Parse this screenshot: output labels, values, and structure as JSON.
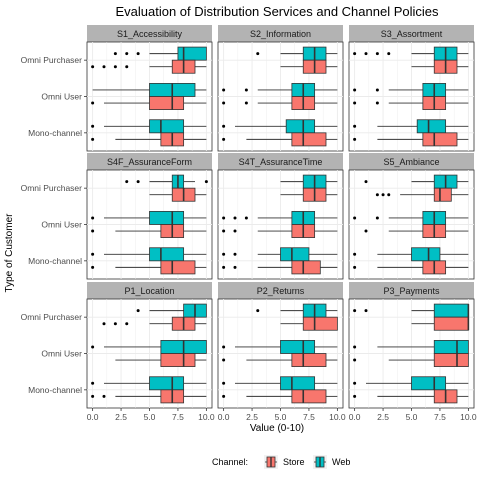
{
  "chart_data": {
    "type": "boxplot-faceted",
    "title": "Evaluation of Distribution Services and Channel Policies",
    "xlabel": "Value (0-10)",
    "ylabel": "Type of Customer",
    "xlim": [
      0,
      10
    ],
    "x_ticks": [
      "0.0",
      "2.5",
      "5.0",
      "7.5",
      "10.0"
    ],
    "x_tick_values": [
      0,
      2.5,
      5,
      7.5,
      10
    ],
    "categories": [
      "Omni Purchaser",
      "Omni User",
      "Mono-channel"
    ],
    "legend": {
      "title": "Channel:",
      "position": "bottom",
      "entries": [
        {
          "key": "store",
          "label": "Store",
          "color": "#F8766D"
        },
        {
          "key": "web",
          "label": "Web",
          "color": "#00BFC4"
        }
      ]
    },
    "grid": true,
    "panels": [
      {
        "title": "S1_Accessibility",
        "groups": {
          "Omni Purchaser": {
            "web": {
              "min": 5,
              "q1": 7.5,
              "median": 8,
              "q3": 10,
              "max": 10,
              "outliers": [
                2,
                3,
                4
              ]
            },
            "store": {
              "min": 5,
              "q1": 7,
              "median": 8,
              "q3": 9,
              "max": 10,
              "outliers": [
                0,
                1,
                2,
                3
              ]
            }
          },
          "Omni User": {
            "web": {
              "min": 0,
              "q1": 5,
              "median": 7,
              "q3": 9,
              "max": 10,
              "outliers": []
            },
            "store": {
              "min": 1,
              "q1": 5,
              "median": 7,
              "q3": 8,
              "max": 10,
              "outliers": [
                0
              ]
            }
          },
          "Mono-channel": {
            "web": {
              "min": 1,
              "q1": 5,
              "median": 6,
              "q3": 8,
              "max": 10,
              "outliers": [
                0
              ]
            },
            "store": {
              "min": 2,
              "q1": 6,
              "median": 7,
              "q3": 8,
              "max": 10,
              "outliers": [
                0
              ]
            }
          }
        }
      },
      {
        "title": "S2_Information",
        "groups": {
          "Omni Purchaser": {
            "web": {
              "min": 5,
              "q1": 7,
              "median": 8,
              "q3": 9,
              "max": 10,
              "outliers": [
                3
              ]
            },
            "store": {
              "min": 5,
              "q1": 7,
              "median": 8,
              "q3": 9,
              "max": 10,
              "outliers": []
            }
          },
          "Omni User": {
            "web": {
              "min": 3,
              "q1": 6,
              "median": 7,
              "q3": 8,
              "max": 10,
              "outliers": [
                0,
                2
              ]
            },
            "store": {
              "min": 3,
              "q1": 6,
              "median": 7,
              "q3": 8,
              "max": 10,
              "outliers": [
                0,
                2
              ]
            }
          },
          "Mono-channel": {
            "web": {
              "min": 1,
              "q1": 5.5,
              "median": 7,
              "q3": 8,
              "max": 10,
              "outliers": [
                0
              ]
            },
            "store": {
              "min": 2,
              "q1": 6,
              "median": 7,
              "q3": 9,
              "max": 10,
              "outliers": [
                0
              ]
            }
          }
        }
      },
      {
        "title": "S3_Assortment",
        "groups": {
          "Omni Purchaser": {
            "web": {
              "min": 5,
              "q1": 7,
              "median": 8,
              "q3": 9,
              "max": 10,
              "outliers": [
                0,
                1,
                2,
                3
              ]
            },
            "store": {
              "min": 5,
              "q1": 7,
              "median": 8,
              "q3": 9,
              "max": 10,
              "outliers": []
            }
          },
          "Omni User": {
            "web": {
              "min": 3,
              "q1": 6,
              "median": 7,
              "q3": 8,
              "max": 10,
              "outliers": [
                0,
                2
              ]
            },
            "store": {
              "min": 3,
              "q1": 6,
              "median": 7,
              "q3": 8,
              "max": 10,
              "outliers": [
                0,
                2
              ]
            }
          },
          "Mono-channel": {
            "web": {
              "min": 2,
              "q1": 5.5,
              "median": 6.5,
              "q3": 8,
              "max": 10,
              "outliers": [
                0
              ]
            },
            "store": {
              "min": 2,
              "q1": 6,
              "median": 7,
              "q3": 9,
              "max": 10,
              "outliers": [
                0
              ]
            }
          }
        }
      },
      {
        "title": "S4F_AssuranceForm",
        "groups": {
          "Omni Purchaser": {
            "web": {
              "min": 5,
              "q1": 7,
              "median": 7.5,
              "q3": 8,
              "max": 9,
              "outliers": [
                3,
                4,
                10
              ]
            },
            "store": {
              "min": 5,
              "q1": 7,
              "median": 8,
              "q3": 9,
              "max": 10,
              "outliers": []
            }
          },
          "Omni User": {
            "web": {
              "min": 1,
              "q1": 5,
              "median": 7,
              "q3": 8,
              "max": 10,
              "outliers": [
                0
              ]
            },
            "store": {
              "min": 2,
              "q1": 6,
              "median": 7,
              "q3": 8,
              "max": 10,
              "outliers": [
                0
              ]
            }
          },
          "Mono-channel": {
            "web": {
              "min": 1,
              "q1": 5,
              "median": 6,
              "q3": 8,
              "max": 10,
              "outliers": [
                0
              ]
            },
            "store": {
              "min": 2,
              "q1": 6,
              "median": 7,
              "q3": 9,
              "max": 10,
              "outliers": [
                0
              ]
            }
          }
        }
      },
      {
        "title": "S4T_AssuranceTime",
        "groups": {
          "Omni Purchaser": {
            "web": {
              "min": 5,
              "q1": 7,
              "median": 8,
              "q3": 9,
              "max": 10,
              "outliers": []
            },
            "store": {
              "min": 5,
              "q1": 7,
              "median": 8,
              "q3": 9,
              "max": 10,
              "outliers": []
            }
          },
          "Omni User": {
            "web": {
              "min": 3,
              "q1": 6,
              "median": 7,
              "q3": 8,
              "max": 10,
              "outliers": [
                0,
                1,
                2
              ]
            },
            "store": {
              "min": 3,
              "q1": 6,
              "median": 7,
              "q3": 8,
              "max": 10,
              "outliers": [
                0,
                1
              ]
            }
          },
          "Mono-channel": {
            "web": {
              "min": 3,
              "q1": 5,
              "median": 6,
              "q3": 7.5,
              "max": 10,
              "outliers": [
                0,
                1
              ]
            },
            "store": {
              "min": 3,
              "q1": 6,
              "median": 7,
              "q3": 8.5,
              "max": 10,
              "outliers": [
                0,
                1
              ]
            }
          }
        }
      },
      {
        "title": "S5_Ambiance",
        "groups": {
          "Omni Purchaser": {
            "web": {
              "min": 5,
              "q1": 7,
              "median": 8,
              "q3": 9,
              "max": 10,
              "outliers": [
                1
              ]
            },
            "store": {
              "min": 4,
              "q1": 7,
              "median": 7.5,
              "q3": 8.5,
              "max": 10,
              "outliers": [
                2,
                2.5,
                3
              ]
            }
          },
          "Omni User": {
            "web": {
              "min": 3,
              "q1": 6,
              "median": 7,
              "q3": 8,
              "max": 10,
              "outliers": [
                0,
                2
              ]
            },
            "store": {
              "min": 3,
              "q1": 6,
              "median": 7,
              "q3": 8,
              "max": 10,
              "outliers": [
                1
              ]
            }
          },
          "Mono-channel": {
            "web": {
              "min": 2,
              "q1": 5,
              "median": 6.5,
              "q3": 7.5,
              "max": 10,
              "outliers": [
                0
              ]
            },
            "store": {
              "min": 2,
              "q1": 6,
              "median": 7,
              "q3": 8,
              "max": 10,
              "outliers": [
                0
              ]
            }
          }
        }
      },
      {
        "title": "P1_Location",
        "groups": {
          "Omni Purchaser": {
            "web": {
              "min": 5,
              "q1": 8,
              "median": 9,
              "q3": 10,
              "max": 10,
              "outliers": [
                4
              ]
            },
            "store": {
              "min": 5,
              "q1": 7,
              "median": 8,
              "q3": 9,
              "max": 10,
              "outliers": [
                1,
                2,
                3
              ]
            }
          },
          "Omni User": {
            "web": {
              "min": 1,
              "q1": 6,
              "median": 8,
              "q3": 10,
              "max": 10,
              "outliers": [
                0
              ]
            },
            "store": {
              "min": 2,
              "q1": 6,
              "median": 8,
              "q3": 9,
              "max": 10,
              "outliers": []
            }
          },
          "Mono-channel": {
            "web": {
              "min": 1,
              "q1": 5,
              "median": 7,
              "q3": 8,
              "max": 10,
              "outliers": [
                0
              ]
            },
            "store": {
              "min": 2,
              "q1": 6,
              "median": 7,
              "q3": 8,
              "max": 10,
              "outliers": [
                0,
                1
              ]
            }
          }
        }
      },
      {
        "title": "P2_Returns",
        "groups": {
          "Omni Purchaser": {
            "web": {
              "min": 5,
              "q1": 7,
              "median": 8,
              "q3": 9,
              "max": 10,
              "outliers": [
                3
              ]
            },
            "store": {
              "min": 5,
              "q1": 7,
              "median": 8,
              "q3": 10,
              "max": 10,
              "outliers": []
            }
          },
          "Omni User": {
            "web": {
              "min": 1,
              "q1": 5,
              "median": 7,
              "q3": 8,
              "max": 10,
              "outliers": [
                0
              ]
            },
            "store": {
              "min": 2,
              "q1": 6,
              "median": 7,
              "q3": 9,
              "max": 10,
              "outliers": [
                0
              ]
            }
          },
          "Mono-channel": {
            "web": {
              "min": 1,
              "q1": 5,
              "median": 6,
              "q3": 8,
              "max": 10,
              "outliers": [
                0
              ]
            },
            "store": {
              "min": 2,
              "q1": 6,
              "median": 7,
              "q3": 9,
              "max": 10,
              "outliers": [
                0
              ]
            }
          }
        }
      },
      {
        "title": "P3_Payments",
        "groups": {
          "Omni Purchaser": {
            "web": {
              "min": 5,
              "q1": 7,
              "median": 10,
              "q3": 10,
              "max": 10,
              "outliers": [
                0,
                1
              ]
            },
            "store": {
              "min": 5,
              "q1": 7,
              "median": 10,
              "q3": 10,
              "max": 10,
              "outliers": []
            }
          },
          "Omni User": {
            "web": {
              "min": 2,
              "q1": 7,
              "median": 9,
              "q3": 10,
              "max": 10,
              "outliers": [
                0
              ]
            },
            "store": {
              "min": 3,
              "q1": 7,
              "median": 9,
              "q3": 10,
              "max": 10,
              "outliers": [
                0
              ]
            }
          },
          "Mono-channel": {
            "web": {
              "min": 1,
              "q1": 5,
              "median": 7,
              "q3": 8,
              "max": 10,
              "outliers": [
                0
              ]
            },
            "store": {
              "min": 2,
              "q1": 7,
              "median": 8,
              "q3": 9,
              "max": 10,
              "outliers": [
                0
              ]
            }
          }
        }
      }
    ]
  }
}
